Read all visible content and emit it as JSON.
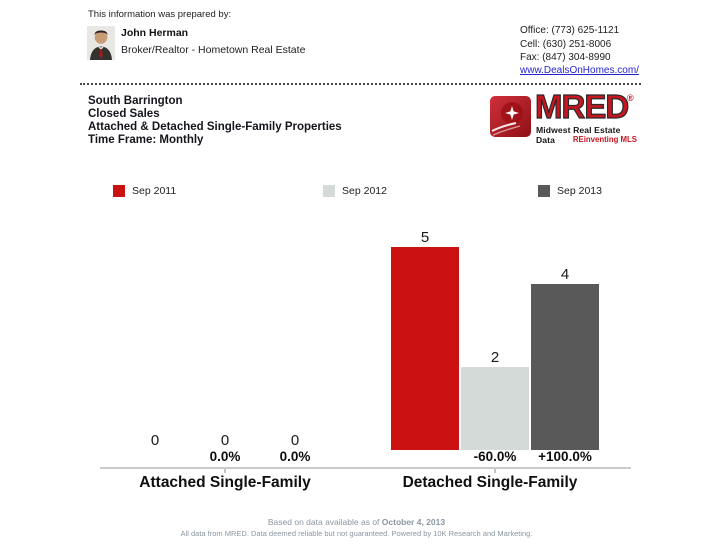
{
  "header": {
    "prepared_by_label": "This information was prepared by:",
    "agent_name": "John Herman",
    "agent_title": "Broker/Realtor - Hometown Real Estate",
    "office_phone": "Office: (773) 625-1121",
    "cell_phone": "Cell: (630) 251-8006",
    "fax": "Fax: (847) 304-8990",
    "website": "www.DealsOnHomes.com/"
  },
  "report": {
    "location": "South Barrington",
    "metric": "Closed Sales",
    "property_types": "Attached & Detached Single-Family Properties",
    "time_frame": "Time Frame: Monthly"
  },
  "logo": {
    "name": "MRED",
    "registered": "®",
    "tagline1": "Midwest Real Estate Data",
    "tagline2": "REinventing MLS",
    "brand_red": "#c6161f"
  },
  "chart_data": {
    "type": "bar",
    "title": "Closed Sales — South Barrington — Monthly",
    "categories": [
      "Attached Single-Family",
      "Detached Single-Family"
    ],
    "series": [
      {
        "name": "Sep 2011",
        "color": "#cc1111",
        "values": [
          0,
          5
        ]
      },
      {
        "name": "Sep 2012",
        "color": "#d4dad7",
        "values": [
          0,
          2
        ]
      },
      {
        "name": "Sep 2013",
        "color": "#595959",
        "values": [
          0,
          4
        ]
      }
    ],
    "pct_change_labels": [
      [
        "",
        "0.0%",
        "0.0%"
      ],
      [
        "",
        "-60.0%",
        "+100.0%"
      ]
    ],
    "ylim": [
      0,
      5
    ],
    "xlabel": "",
    "ylabel": "",
    "grid": false,
    "legend_position": "top"
  },
  "footer": {
    "line1_prefix": "Based on data available as of ",
    "line1_date": "October 4, 2013",
    "line2": "All data from MRED. Data deemed reliable but not guaranteed. Powered by 10K Research and Marketing."
  }
}
